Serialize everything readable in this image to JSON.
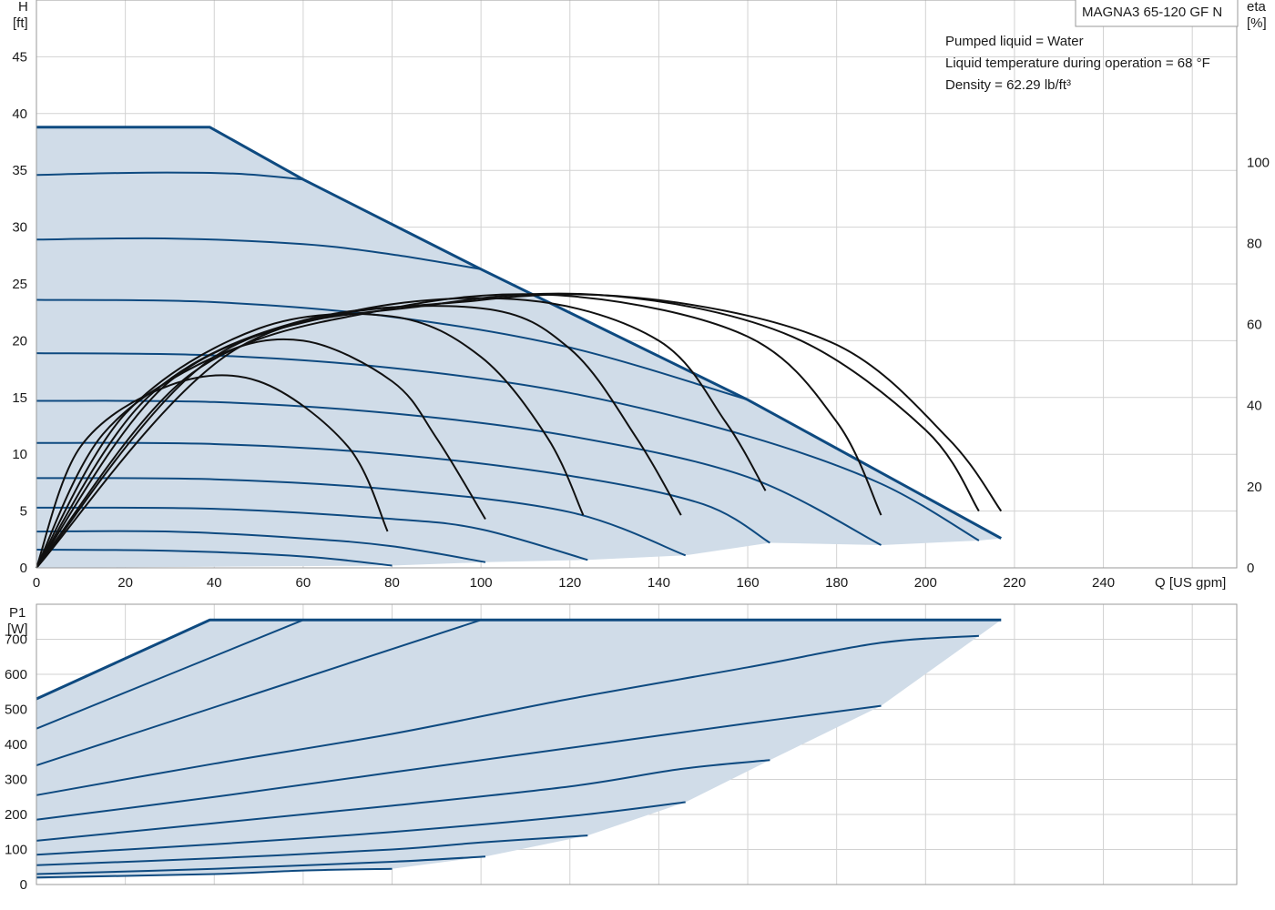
{
  "model_label": "MAGNA3 65-120 GF N",
  "info_lines": [
    "Pumped liquid = Water",
    "Liquid temperature during operation = 68 °F",
    "Density = 62.29 lb/ft³"
  ],
  "colors": {
    "curve": "#0e4a80",
    "fill": "#d0dce8",
    "eta": "#111111",
    "grid": "#d2d2d2"
  },
  "chart_data": [
    {
      "type": "line",
      "name": "head",
      "y_axis_label": [
        "H",
        "[ft]"
      ],
      "y2_axis_label": [
        "eta",
        "[%]"
      ],
      "x_axis_label": "Q [US gpm]",
      "xlim": [
        0,
        270
      ],
      "ylim": [
        0,
        50
      ],
      "y2lim": [
        0,
        140
      ],
      "grid": true,
      "x_ticks": [
        0,
        20,
        40,
        60,
        80,
        100,
        120,
        140,
        160,
        180,
        200,
        220,
        240
      ],
      "y_ticks": [
        0,
        5,
        10,
        15,
        20,
        25,
        30,
        35,
        40,
        45
      ],
      "y2_ticks": [
        0,
        20,
        40,
        60,
        80,
        100
      ],
      "max_curve": [
        [
          0,
          38.8
        ],
        [
          39,
          38.8
        ],
        [
          60,
          34.2
        ],
        [
          100,
          26.3
        ],
        [
          160,
          14.8
        ],
        [
          217,
          2.6
        ]
      ],
      "speed_curves": [
        [
          [
            0,
            34.6
          ],
          [
            25,
            34.8
          ],
          [
            45,
            34.7
          ],
          [
            60,
            34.2
          ]
        ],
        [
          [
            0,
            28.9
          ],
          [
            30,
            29.0
          ],
          [
            60,
            28.5
          ],
          [
            80,
            27.6
          ],
          [
            100,
            26.3
          ]
        ],
        [
          [
            0,
            23.6
          ],
          [
            40,
            23.4
          ],
          [
            80,
            22.1
          ],
          [
            120,
            19.4
          ],
          [
            160,
            14.8
          ]
        ],
        [
          [
            0,
            18.9
          ],
          [
            40,
            18.7
          ],
          [
            80,
            17.6
          ],
          [
            120,
            15.4
          ],
          [
            160,
            11.6
          ],
          [
            190,
            7.4
          ],
          [
            212,
            2.4
          ]
        ],
        [
          [
            0,
            14.7
          ],
          [
            40,
            14.6
          ],
          [
            80,
            13.6
          ],
          [
            120,
            11.6
          ],
          [
            160,
            8.0
          ],
          [
            190,
            2.0
          ]
        ],
        [
          [
            0,
            11.0
          ],
          [
            40,
            10.9
          ],
          [
            80,
            10.0
          ],
          [
            120,
            8.1
          ],
          [
            150,
            5.6
          ],
          [
            165,
            2.2
          ]
        ],
        [
          [
            0,
            7.9
          ],
          [
            40,
            7.8
          ],
          [
            80,
            6.9
          ],
          [
            120,
            4.9
          ],
          [
            146,
            1.1
          ]
        ],
        [
          [
            0,
            5.3
          ],
          [
            40,
            5.2
          ],
          [
            80,
            4.3
          ],
          [
            100,
            3.4
          ],
          [
            124,
            0.7
          ]
        ],
        [
          [
            0,
            3.2
          ],
          [
            30,
            3.2
          ],
          [
            60,
            2.6
          ],
          [
            80,
            1.9
          ],
          [
            101,
            0.5
          ]
        ],
        [
          [
            0,
            1.6
          ],
          [
            30,
            1.5
          ],
          [
            60,
            1.0
          ],
          [
            80,
            0.2
          ]
        ]
      ],
      "operating_region": [
        [
          0,
          38.8
        ],
        [
          39,
          38.8
        ],
        [
          60,
          34.2
        ],
        [
          100,
          26.3
        ],
        [
          160,
          14.8
        ],
        [
          217,
          2.6
        ],
        [
          212,
          2.4
        ],
        [
          190,
          2.0
        ],
        [
          165,
          2.2
        ],
        [
          146,
          1.1
        ],
        [
          124,
          0.7
        ],
        [
          101,
          0.5
        ],
        [
          80,
          0.2
        ],
        [
          0,
          0
        ]
      ],
      "efficiency_curves": [
        [
          [
            0,
            0
          ],
          [
            10,
            30
          ],
          [
            30,
            45
          ],
          [
            50,
            46
          ],
          [
            70,
            30
          ],
          [
            79,
            9
          ]
        ],
        [
          [
            0,
            0
          ],
          [
            15,
            33
          ],
          [
            40,
            52
          ],
          [
            60,
            56
          ],
          [
            80,
            46
          ],
          [
            90,
            32
          ],
          [
            101,
            12
          ]
        ],
        [
          [
            0,
            0
          ],
          [
            20,
            38
          ],
          [
            50,
            59
          ],
          [
            80,
            62
          ],
          [
            100,
            52
          ],
          [
            115,
            32
          ],
          [
            123,
            13
          ]
        ],
        [
          [
            0,
            0
          ],
          [
            25,
            42
          ],
          [
            60,
            61
          ],
          [
            100,
            64
          ],
          [
            120,
            54
          ],
          [
            135,
            32
          ],
          [
            145,
            13
          ]
        ],
        [
          [
            0,
            0
          ],
          [
            30,
            46
          ],
          [
            70,
            63
          ],
          [
            110,
            66
          ],
          [
            140,
            56
          ],
          [
            155,
            36
          ],
          [
            164,
            19
          ]
        ],
        [
          [
            0,
            0
          ],
          [
            35,
            48
          ],
          [
            80,
            64
          ],
          [
            120,
            67
          ],
          [
            160,
            57
          ],
          [
            180,
            36
          ],
          [
            190,
            13
          ]
        ],
        [
          [
            0,
            0
          ],
          [
            40,
            52
          ],
          [
            90,
            65
          ],
          [
            130,
            67
          ],
          [
            170,
            57
          ],
          [
            200,
            34
          ],
          [
            212,
            14
          ]
        ],
        [
          [
            0,
            0
          ],
          [
            45,
            54
          ],
          [
            100,
            66
          ],
          [
            140,
            66
          ],
          [
            180,
            55
          ],
          [
            205,
            32
          ],
          [
            217,
            14
          ]
        ]
      ]
    },
    {
      "type": "line",
      "name": "power",
      "y_axis_label": [
        "P1",
        "[W]"
      ],
      "xlim": [
        0,
        270
      ],
      "ylim": [
        0,
        800
      ],
      "grid": true,
      "y_ticks": [
        0,
        100,
        200,
        300,
        400,
        500,
        600,
        700
      ],
      "max_curve": [
        [
          0,
          530
        ],
        [
          39,
          755
        ],
        [
          217,
          755
        ]
      ],
      "speed_curves": [
        [
          [
            0,
            445
          ],
          [
            60,
            755
          ]
        ],
        [
          [
            0,
            340
          ],
          [
            100,
            755
          ]
        ],
        [
          [
            0,
            255
          ],
          [
            40,
            345
          ],
          [
            80,
            430
          ],
          [
            120,
            530
          ],
          [
            160,
            620
          ],
          [
            190,
            690
          ],
          [
            212,
            710
          ]
        ],
        [
          [
            0,
            185
          ],
          [
            40,
            250
          ],
          [
            80,
            320
          ],
          [
            120,
            390
          ],
          [
            160,
            460
          ],
          [
            190,
            510
          ]
        ],
        [
          [
            0,
            125
          ],
          [
            40,
            175
          ],
          [
            80,
            225
          ],
          [
            120,
            280
          ],
          [
            145,
            330
          ],
          [
            165,
            355
          ]
        ],
        [
          [
            0,
            85
          ],
          [
            40,
            115
          ],
          [
            80,
            150
          ],
          [
            120,
            195
          ],
          [
            146,
            235
          ]
        ],
        [
          [
            0,
            55
          ],
          [
            40,
            75
          ],
          [
            80,
            100
          ],
          [
            100,
            120
          ],
          [
            124,
            140
          ]
        ],
        [
          [
            0,
            30
          ],
          [
            40,
            45
          ],
          [
            80,
            65
          ],
          [
            101,
            80
          ]
        ],
        [
          [
            0,
            20
          ],
          [
            40,
            30
          ],
          [
            60,
            40
          ],
          [
            80,
            45
          ]
        ]
      ],
      "operating_region": [
        [
          0,
          530
        ],
        [
          39,
          755
        ],
        [
          217,
          755
        ],
        [
          212,
          710
        ],
        [
          190,
          510
        ],
        [
          165,
          355
        ],
        [
          146,
          235
        ],
        [
          124,
          140
        ],
        [
          101,
          80
        ],
        [
          80,
          45
        ],
        [
          0,
          15
        ]
      ]
    }
  ]
}
